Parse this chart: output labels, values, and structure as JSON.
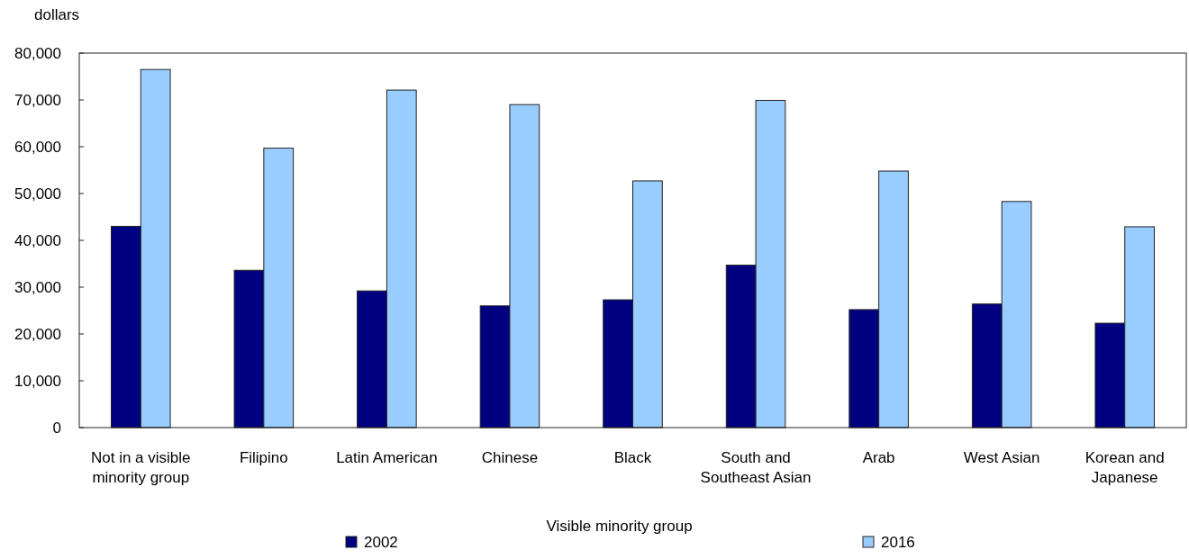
{
  "chart_data": {
    "type": "bar",
    "ylabel": "dollars",
    "xlabel": "Visible minority group",
    "categories": [
      "Not in a visible minority group",
      "Filipino",
      "Latin American",
      "Chinese",
      "Black",
      "South and Southeast Asian",
      "Arab",
      "West Asian",
      "Korean and Japanese"
    ],
    "series": [
      {
        "name": "2002",
        "color": "#000080",
        "values": [
          43000,
          33600,
          29200,
          26000,
          27300,
          34700,
          25200,
          26400,
          22300
        ]
      },
      {
        "name": "2016",
        "color": "#99ccff",
        "values": [
          76500,
          59700,
          72100,
          69000,
          52700,
          69900,
          54800,
          48300,
          42900
        ]
      }
    ],
    "ylim": [
      0,
      80000
    ],
    "yticks": [
      {
        "value": 0,
        "label": "0"
      },
      {
        "value": 10000,
        "label": "10,000"
      },
      {
        "value": 20000,
        "label": "20,000"
      },
      {
        "value": 30000,
        "label": "30,000"
      },
      {
        "value": 40000,
        "label": "40,000"
      },
      {
        "value": 50000,
        "label": "50,000"
      },
      {
        "value": 60000,
        "label": "60,000"
      },
      {
        "value": 70000,
        "label": "70,000"
      },
      {
        "value": 80000,
        "label": "80,000"
      }
    ],
    "grid": false,
    "legend": "bottom"
  }
}
